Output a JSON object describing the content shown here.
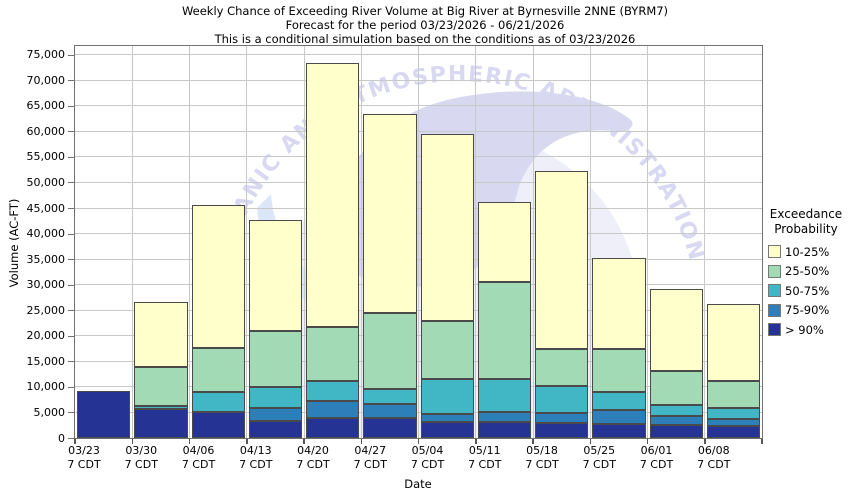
{
  "title": {
    "line1": "Weekly Chance of Exceeding River Volume at Big River at Byrnesville 2NNE (BYRM7)",
    "line2": "Forecast for the period 03/23/2026 - 06/21/2026",
    "line3": "This is a conditional simulation based on the conditions as of 03/23/2026"
  },
  "y_axis": {
    "label": "Volume (AC-FT)",
    "ticks": [
      0,
      5000,
      10000,
      15000,
      20000,
      25000,
      30000,
      35000,
      40000,
      45000,
      50000,
      55000,
      60000,
      65000,
      70000,
      75000
    ]
  },
  "x_axis": {
    "label": "Date"
  },
  "legend": {
    "title_line1": "Exceedance",
    "title_line2": "Probability",
    "items": [
      {
        "label": "10-25%",
        "color": "#ffffcc"
      },
      {
        "label": "25-50%",
        "color": "#a1dab4"
      },
      {
        "label": "50-75%",
        "color": "#41b6c4"
      },
      {
        "label": "75-90%",
        "color": "#2c7fb8"
      },
      {
        "label": "> 90%",
        "color": "#253494"
      }
    ]
  },
  "watermark": {
    "text": "NATIONAL OCEANIC AND ATMOSPHERIC ADMINISTRATION"
  },
  "chart_data": {
    "type": "bar",
    "stacked": true,
    "title": "Weekly Chance of Exceeding River Volume at Big River at Byrnesville 2NNE (BYRM7)",
    "xlabel": "Date",
    "ylabel": "Volume (AC-FT)",
    "ylim": [
      0,
      76700
    ],
    "y_tick_step": 5000,
    "grid": true,
    "legend_position": "right",
    "categories": [
      {
        "date": "03/23",
        "time": "7 CDT"
      },
      {
        "date": "03/30",
        "time": "7 CDT"
      },
      {
        "date": "04/06",
        "time": "7 CDT"
      },
      {
        "date": "04/13",
        "time": "7 CDT"
      },
      {
        "date": "04/20",
        "time": "7 CDT"
      },
      {
        "date": "04/27",
        "time": "7 CDT"
      },
      {
        "date": "05/04",
        "time": "7 CDT"
      },
      {
        "date": "05/11",
        "time": "7 CDT"
      },
      {
        "date": "05/18",
        "time": "7 CDT"
      },
      {
        "date": "05/25",
        "time": "7 CDT"
      },
      {
        "date": "06/01",
        "time": "7 CDT"
      },
      {
        "date": "06/08",
        "time": "7 CDT"
      }
    ],
    "series": [
      {
        "name": "> 90%",
        "color": "#253494",
        "values": [
          9200,
          5600,
          5000,
          3400,
          4000,
          4000,
          3100,
          3100,
          3000,
          2800,
          2600,
          2300
        ]
      },
      {
        "name": "75-90%",
        "color": "#2c7fb8",
        "values": [
          0,
          0,
          0,
          2500,
          3200,
          2600,
          1600,
          1900,
          1900,
          2700,
          1800,
          1400
        ]
      },
      {
        "name": "50-75%",
        "color": "#41b6c4",
        "values": [
          0,
          700,
          4100,
          4100,
          3900,
          2900,
          6800,
          6500,
          5200,
          3600,
          2000,
          2100
        ]
      },
      {
        "name": "25-50%",
        "color": "#a1dab4",
        "values": [
          0,
          7500,
          8500,
          10900,
          10700,
          14900,
          11300,
          19100,
          7300,
          8400,
          6700,
          5300
        ]
      },
      {
        "name": "10-25%",
        "color": "#ffffcc",
        "values": [
          0,
          12800,
          27900,
          21700,
          51500,
          39000,
          36700,
          15500,
          34800,
          17800,
          16000,
          15100
        ]
      }
    ],
    "totals": [
      9200,
      26600,
      45500,
      42600,
      73300,
      63400,
      59500,
      46100,
      52200,
      35300,
      29100,
      26200
    ]
  }
}
